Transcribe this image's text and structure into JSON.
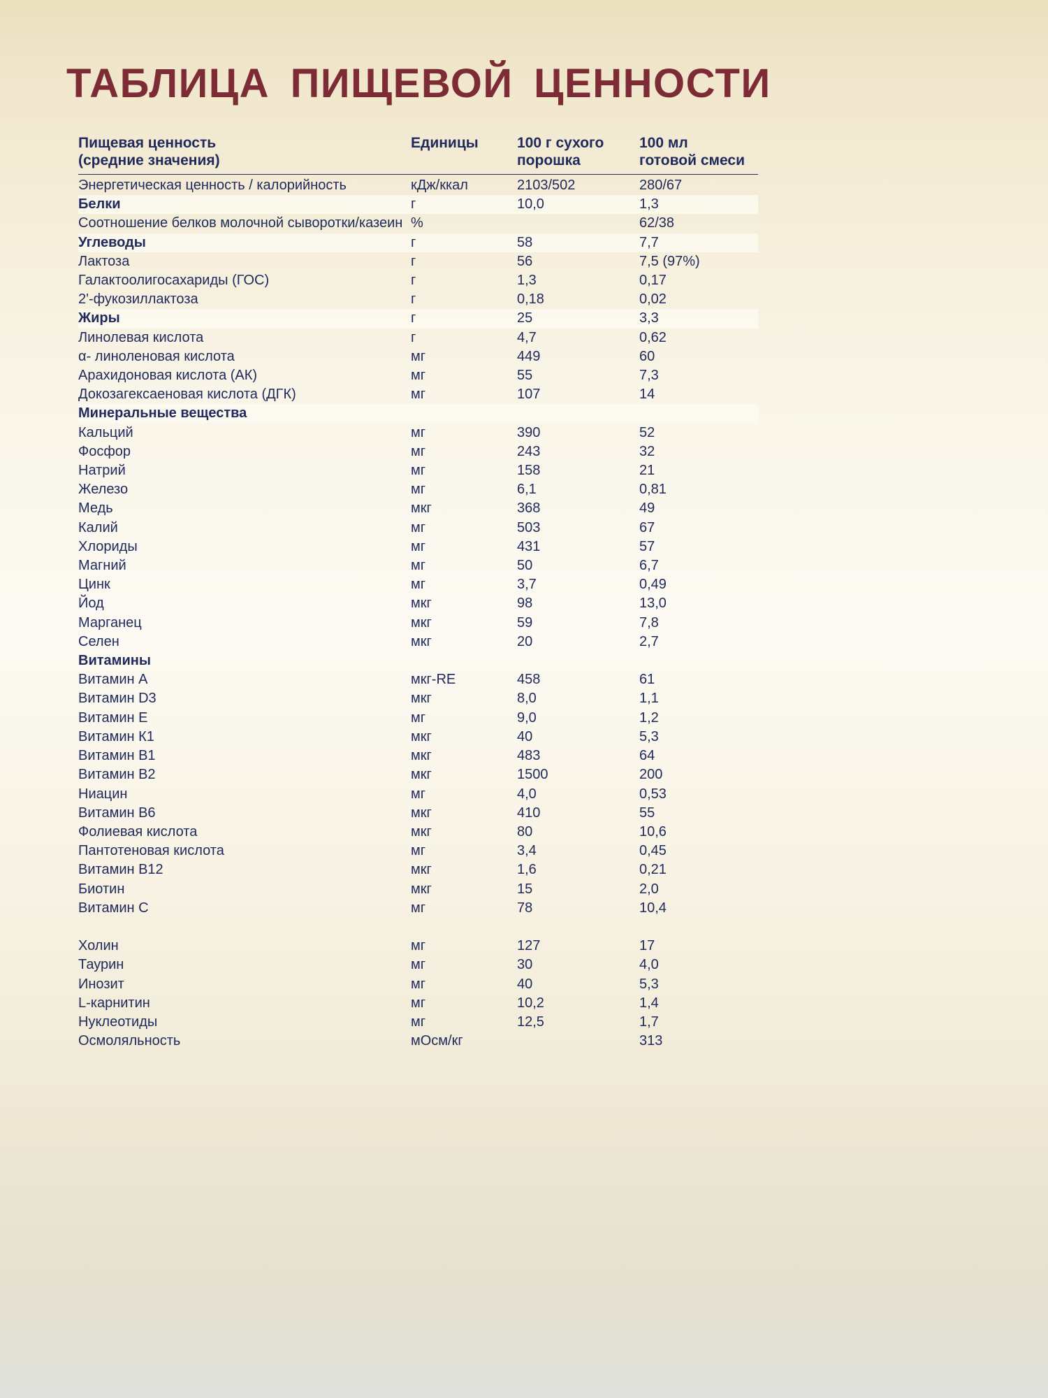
{
  "title": "ТАБЛИЦА ПИЩЕВОЙ ЦЕННОСТИ",
  "colors": {
    "title": "#7d2b35",
    "text": "#202a5c",
    "band": "rgba(253, 250, 241, 0.8)"
  },
  "table": {
    "headers": [
      "Пищевая ценность\n(средние значения)",
      "Единицы",
      "100 г сухого\nпорошка",
      "100 мл\nготовой смеси"
    ],
    "rows": [
      {
        "name": "Энергетическая ценность / калорийность",
        "unit": "кДж/ккал",
        "per_100g": "2103/502",
        "per_100ml": "280/67"
      },
      {
        "name": "Белки",
        "unit": "г",
        "per_100g": "10,0",
        "per_100ml": "1,3",
        "section": true
      },
      {
        "name": "Соотношение белков молочной сыворотки/казеин",
        "unit": "%",
        "per_100g": "",
        "per_100ml": "62/38"
      },
      {
        "name": "Углеводы",
        "unit": "г",
        "per_100g": "58",
        "per_100ml": "7,7",
        "section": true
      },
      {
        "name": "Лактоза",
        "unit": "г",
        "per_100g": "56",
        "per_100ml": "7,5 (97%)"
      },
      {
        "name": "Галактоолигосахариды (ГОС)",
        "unit": "г",
        "per_100g": "1,3",
        "per_100ml": "0,17"
      },
      {
        "name": "2'-фукозиллактоза",
        "unit": "г",
        "per_100g": "0,18",
        "per_100ml": "0,02"
      },
      {
        "name": "Жиры",
        "unit": "г",
        "per_100g": "25",
        "per_100ml": "3,3",
        "section": true
      },
      {
        "name": "Линолевая кислота",
        "unit": "г",
        "per_100g": "4,7",
        "per_100ml": "0,62"
      },
      {
        "name": "α- линоленовая кислота",
        "unit": "мг",
        "per_100g": "449",
        "per_100ml": "60"
      },
      {
        "name": "Арахидоновая кислота (АК)",
        "unit": "мг",
        "per_100g": "55",
        "per_100ml": "7,3"
      },
      {
        "name": "Докозагексаеновая кислота (ДГК)",
        "unit": "мг",
        "per_100g": "107",
        "per_100ml": "14"
      },
      {
        "name": "Минеральные вещества",
        "unit": "",
        "per_100g": "",
        "per_100ml": "",
        "section": true
      },
      {
        "name": "Кальций",
        "unit": "мг",
        "per_100g": "390",
        "per_100ml": "52"
      },
      {
        "name": "Фосфор",
        "unit": "мг",
        "per_100g": "243",
        "per_100ml": "32"
      },
      {
        "name": "Натрий",
        "unit": "мг",
        "per_100g": "158",
        "per_100ml": "21"
      },
      {
        "name": "Железо",
        "unit": "мг",
        "per_100g": "6,1",
        "per_100ml": "0,81"
      },
      {
        "name": "Медь",
        "unit": "мкг",
        "per_100g": "368",
        "per_100ml": "49"
      },
      {
        "name": "Калий",
        "unit": "мг",
        "per_100g": "503",
        "per_100ml": "67"
      },
      {
        "name": "Хлориды",
        "unit": "мг",
        "per_100g": "431",
        "per_100ml": "57"
      },
      {
        "name": "Магний",
        "unit": "мг",
        "per_100g": "50",
        "per_100ml": "6,7"
      },
      {
        "name": "Цинк",
        "unit": "мг",
        "per_100g": "3,7",
        "per_100ml": "0,49"
      },
      {
        "name": "Йод",
        "unit": "мкг",
        "per_100g": "98",
        "per_100ml": "13,0"
      },
      {
        "name": "Марганец",
        "unit": "мкг",
        "per_100g": "59",
        "per_100ml": "7,8"
      },
      {
        "name": "Селен",
        "unit": "мкг",
        "per_100g": "20",
        "per_100ml": "2,7"
      },
      {
        "name": "Витамины",
        "unit": "",
        "per_100g": "",
        "per_100ml": "",
        "section": true
      },
      {
        "name": "Витамин А",
        "unit": "мкг-RE",
        "per_100g": "458",
        "per_100ml": "61"
      },
      {
        "name": "Витамин D3",
        "unit": "мкг",
        "per_100g": "8,0",
        "per_100ml": "1,1"
      },
      {
        "name": "Витамин Е",
        "unit": "мг",
        "per_100g": "9,0",
        "per_100ml": "1,2"
      },
      {
        "name": "Витамин К1",
        "unit": "мкг",
        "per_100g": "40",
        "per_100ml": "5,3"
      },
      {
        "name": "Витамин В1",
        "unit": "мкг",
        "per_100g": "483",
        "per_100ml": "64"
      },
      {
        "name": "Витамин В2",
        "unit": "мкг",
        "per_100g": "1500",
        "per_100ml": "200"
      },
      {
        "name": "Ниацин",
        "unit": "мг",
        "per_100g": "4,0",
        "per_100ml": "0,53"
      },
      {
        "name": "Витамин В6",
        "unit": "мкг",
        "per_100g": "410",
        "per_100ml": "55"
      },
      {
        "name": "Фолиевая кислота",
        "unit": "мкг",
        "per_100g": "80",
        "per_100ml": "10,6"
      },
      {
        "name": "Пантотеновая кислота",
        "unit": "мг",
        "per_100g": "3,4",
        "per_100ml": "0,45"
      },
      {
        "name": "Витамин В12",
        "unit": "мкг",
        "per_100g": "1,6",
        "per_100ml": "0,21"
      },
      {
        "name": "Биотин",
        "unit": "мкг",
        "per_100g": "15",
        "per_100ml": "2,0"
      },
      {
        "name": "Витамин С",
        "unit": "мг",
        "per_100g": "78",
        "per_100ml": "10,4"
      },
      {
        "spacer": true,
        "name": "",
        "unit": "",
        "per_100g": "",
        "per_100ml": ""
      },
      {
        "name": "Холин",
        "unit": "мг",
        "per_100g": "127",
        "per_100ml": "17"
      },
      {
        "name": "Таурин",
        "unit": "мг",
        "per_100g": "30",
        "per_100ml": "4,0"
      },
      {
        "name": "Инозит",
        "unit": "мг",
        "per_100g": "40",
        "per_100ml": "5,3"
      },
      {
        "name": "L-карнитин",
        "unit": "мг",
        "per_100g": "10,2",
        "per_100ml": "1,4"
      },
      {
        "name": "Нуклеотиды",
        "unit": "мг",
        "per_100g": "12,5",
        "per_100ml": "1,7"
      },
      {
        "name": "Осмоляльность",
        "unit": "мОсм/кг",
        "per_100g": "",
        "per_100ml": "313"
      }
    ]
  }
}
